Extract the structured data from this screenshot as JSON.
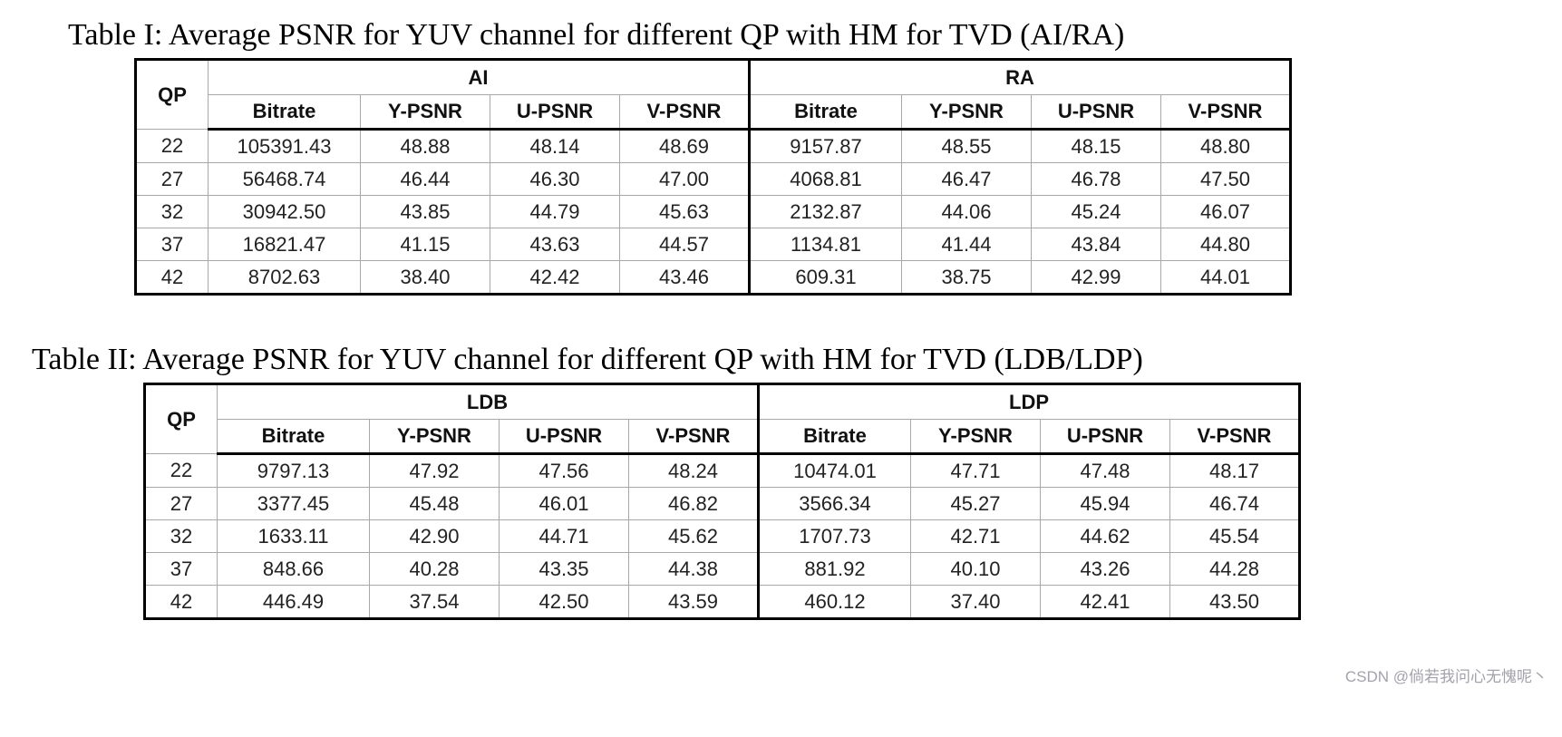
{
  "page": {
    "watermark": "CSDN @倘若我问心无愧呢丶"
  },
  "tables": [
    {
      "title": "Table I: Average PSNR for YUV channel for different QP with HM for TVD (AI/RA)",
      "qp_header": "QP",
      "groups": [
        {
          "label": "AI",
          "columns": [
            "Bitrate",
            "Y-PSNR",
            "U-PSNR",
            "V-PSNR"
          ]
        },
        {
          "label": "RA",
          "columns": [
            "Bitrate",
            "Y-PSNR",
            "U-PSNR",
            "V-PSNR"
          ]
        }
      ],
      "rows": [
        {
          "qp": "22",
          "cells": [
            "105391.43",
            "48.88",
            "48.14",
            "48.69",
            "9157.87",
            "48.55",
            "48.15",
            "48.80"
          ]
        },
        {
          "qp": "27",
          "cells": [
            "56468.74",
            "46.44",
            "46.30",
            "47.00",
            "4068.81",
            "46.47",
            "46.78",
            "47.50"
          ]
        },
        {
          "qp": "32",
          "cells": [
            "30942.50",
            "43.85",
            "44.79",
            "45.63",
            "2132.87",
            "44.06",
            "45.24",
            "46.07"
          ]
        },
        {
          "qp": "37",
          "cells": [
            "16821.47",
            "41.15",
            "43.63",
            "44.57",
            "1134.81",
            "41.44",
            "43.84",
            "44.80"
          ]
        },
        {
          "qp": "42",
          "cells": [
            "8702.63",
            "38.40",
            "42.42",
            "43.46",
            "609.31",
            "38.75",
            "42.99",
            "44.01"
          ]
        }
      ]
    },
    {
      "title": "Table II: Average PSNR for YUV channel for different QP with HM for TVD (LDB/LDP)",
      "qp_header": "QP",
      "groups": [
        {
          "label": "LDB",
          "columns": [
            "Bitrate",
            "Y-PSNR",
            "U-PSNR",
            "V-PSNR"
          ]
        },
        {
          "label": "LDP",
          "columns": [
            "Bitrate",
            "Y-PSNR",
            "U-PSNR",
            "V-PSNR"
          ]
        }
      ],
      "rows": [
        {
          "qp": "22",
          "cells": [
            "9797.13",
            "47.92",
            "47.56",
            "48.24",
            "10474.01",
            "47.71",
            "47.48",
            "48.17"
          ]
        },
        {
          "qp": "27",
          "cells": [
            "3377.45",
            "45.48",
            "46.01",
            "46.82",
            "3566.34",
            "45.27",
            "45.94",
            "46.74"
          ]
        },
        {
          "qp": "32",
          "cells": [
            "1633.11",
            "42.90",
            "44.71",
            "45.62",
            "1707.73",
            "42.71",
            "44.62",
            "45.54"
          ]
        },
        {
          "qp": "37",
          "cells": [
            "848.66",
            "40.28",
            "43.35",
            "44.38",
            "881.92",
            "40.10",
            "43.26",
            "44.28"
          ]
        },
        {
          "qp": "42",
          "cells": [
            "446.49",
            "37.54",
            "42.50",
            "43.59",
            "460.12",
            "37.40",
            "42.41",
            "43.50"
          ]
        }
      ]
    }
  ]
}
